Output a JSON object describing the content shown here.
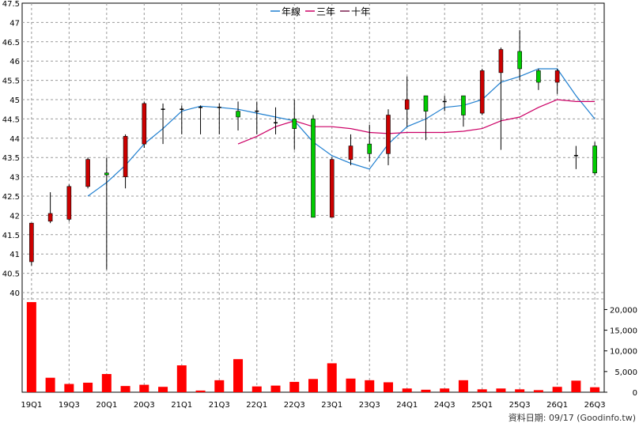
{
  "chart_data": [
    {
      "type": "candlestick",
      "title": "",
      "legend": [
        {
          "label": "年線",
          "color": "#1f7fd0"
        },
        {
          "label": "三年",
          "color": "#cc0066"
        },
        {
          "label": "十年",
          "color": "#7a1f4f"
        }
      ],
      "legend_position": "top-center",
      "ylim": [
        40,
        47.5
      ],
      "y_ticks": [
        "40",
        "40.5",
        "41",
        "41.5",
        "42",
        "42.5",
        "43",
        "43.5",
        "44",
        "44.5",
        "45",
        "45.5",
        "46",
        "46.5",
        "47",
        "47.5"
      ],
      "grid": true,
      "candles": [
        {
          "o": 40.8,
          "c": 41.8,
          "h": 41.8,
          "l": 40.7
        },
        {
          "o": 41.85,
          "c": 42.05,
          "h": 42.6,
          "l": 41.8
        },
        {
          "o": 41.9,
          "c": 42.75,
          "h": 42.8,
          "l": 41.85
        },
        {
          "o": 42.75,
          "c": 43.45,
          "h": 43.5,
          "l": 42.7
        },
        {
          "o": 43.1,
          "c": 43.05,
          "h": 43.5,
          "l": 40.6
        },
        {
          "o": 43.0,
          "c": 44.05,
          "h": 44.1,
          "l": 42.7
        },
        {
          "o": 43.85,
          "c": 44.9,
          "h": 44.95,
          "l": 43.75
        },
        {
          "o": 44.75,
          "c": 44.75,
          "h": 44.9,
          "l": 43.85
        },
        {
          "o": 44.75,
          "c": 44.75,
          "h": 44.85,
          "l": 44.1
        },
        {
          "o": 44.8,
          "c": 44.8,
          "h": 44.85,
          "l": 44.1
        },
        {
          "o": 44.8,
          "c": 44.8,
          "h": 44.9,
          "l": 44.1
        },
        {
          "o": 44.7,
          "c": 44.55,
          "h": 44.95,
          "l": 44.2
        },
        {
          "o": 44.7,
          "c": 44.7,
          "h": 44.95,
          "l": 44.1
        },
        {
          "o": 44.4,
          "c": 44.4,
          "h": 44.8,
          "l": 44.1
        },
        {
          "o": 44.5,
          "c": 44.25,
          "h": 45.0,
          "l": 43.7
        },
        {
          "o": 44.5,
          "c": 41.95,
          "h": 44.6,
          "l": 41.95
        },
        {
          "o": 41.95,
          "c": 43.45,
          "h": 43.5,
          "l": 41.95
        },
        {
          "o": 43.45,
          "c": 43.8,
          "h": 44.1,
          "l": 43.3
        },
        {
          "o": 43.85,
          "c": 43.6,
          "h": 44.35,
          "l": 43.4
        },
        {
          "o": 43.6,
          "c": 44.6,
          "h": 44.75,
          "l": 43.3
        },
        {
          "o": 44.75,
          "c": 45.0,
          "h": 45.6,
          "l": 44.3
        },
        {
          "o": 45.1,
          "c": 44.7,
          "h": 45.1,
          "l": 43.95
        },
        {
          "o": 44.95,
          "c": 44.95,
          "h": 45.1,
          "l": 44.7
        },
        {
          "o": 45.1,
          "c": 44.6,
          "h": 45.1,
          "l": 44.3
        },
        {
          "o": 44.65,
          "c": 45.75,
          "h": 45.8,
          "l": 44.6
        },
        {
          "o": 45.7,
          "c": 46.3,
          "h": 46.35,
          "l": 43.7
        },
        {
          "o": 46.25,
          "c": 45.8,
          "h": 46.8,
          "l": 45.5
        },
        {
          "o": 45.75,
          "c": 45.45,
          "h": 45.8,
          "l": 45.25
        },
        {
          "o": 45.45,
          "c": 45.75,
          "h": 45.8,
          "l": 45.15
        },
        {
          "o": 43.55,
          "c": 43.55,
          "h": 43.8,
          "l": 43.2
        },
        {
          "o": 43.8,
          "c": 43.1,
          "h": 43.9,
          "l": 43.05
        }
      ],
      "series": [
        {
          "name": "年線",
          "color": "#1f7fd0",
          "values": [
            null,
            null,
            null,
            42.5,
            42.85,
            43.3,
            43.85,
            44.25,
            44.7,
            44.83,
            44.8,
            44.75,
            44.65,
            44.55,
            44.45,
            43.9,
            43.55,
            43.35,
            43.2,
            43.85,
            44.3,
            44.5,
            44.8,
            44.85,
            45.0,
            45.45,
            45.6,
            45.8,
            45.8,
            45.1,
            44.5
          ]
        },
        {
          "name": "三年",
          "color": "#cc0066",
          "values": [
            null,
            null,
            null,
            null,
            null,
            null,
            null,
            null,
            null,
            null,
            null,
            43.85,
            44.05,
            44.3,
            44.45,
            44.3,
            44.3,
            44.25,
            44.15,
            44.12,
            44.15,
            44.15,
            44.15,
            44.18,
            44.25,
            44.45,
            44.55,
            44.8,
            45.0,
            44.95,
            44.95
          ]
        }
      ]
    },
    {
      "type": "bar",
      "ylim": [
        0,
        22000
      ],
      "y_ticks": [
        "0",
        "5,000",
        "10,000",
        "15,000",
        "20,000"
      ],
      "values": [
        21800,
        3500,
        2000,
        2300,
        4400,
        1500,
        1800,
        1300,
        6500,
        400,
        2900,
        8000,
        1400,
        1600,
        2500,
        3200,
        7000,
        3300,
        2900,
        2400,
        900,
        600,
        900,
        2900,
        700,
        900,
        700,
        500,
        1300,
        2800,
        1200
      ],
      "color": "#ff0000"
    }
  ],
  "x_ticks": [
    "19Q1",
    "19Q3",
    "20Q1",
    "20Q3",
    "21Q1",
    "21Q3",
    "22Q1",
    "22Q3",
    "23Q1",
    "23Q3",
    "24Q1",
    "24Q3",
    "25Q1",
    "25Q3",
    "26Q1",
    "26Q3"
  ],
  "source_text": "資料日期: 09/17  (Goodinfo.tw)",
  "colors": {
    "up": "#cc0000",
    "down": "#00cc00",
    "grid": "#999999",
    "line_year": "#1f7fd0",
    "line_3y": "#cc0066"
  }
}
